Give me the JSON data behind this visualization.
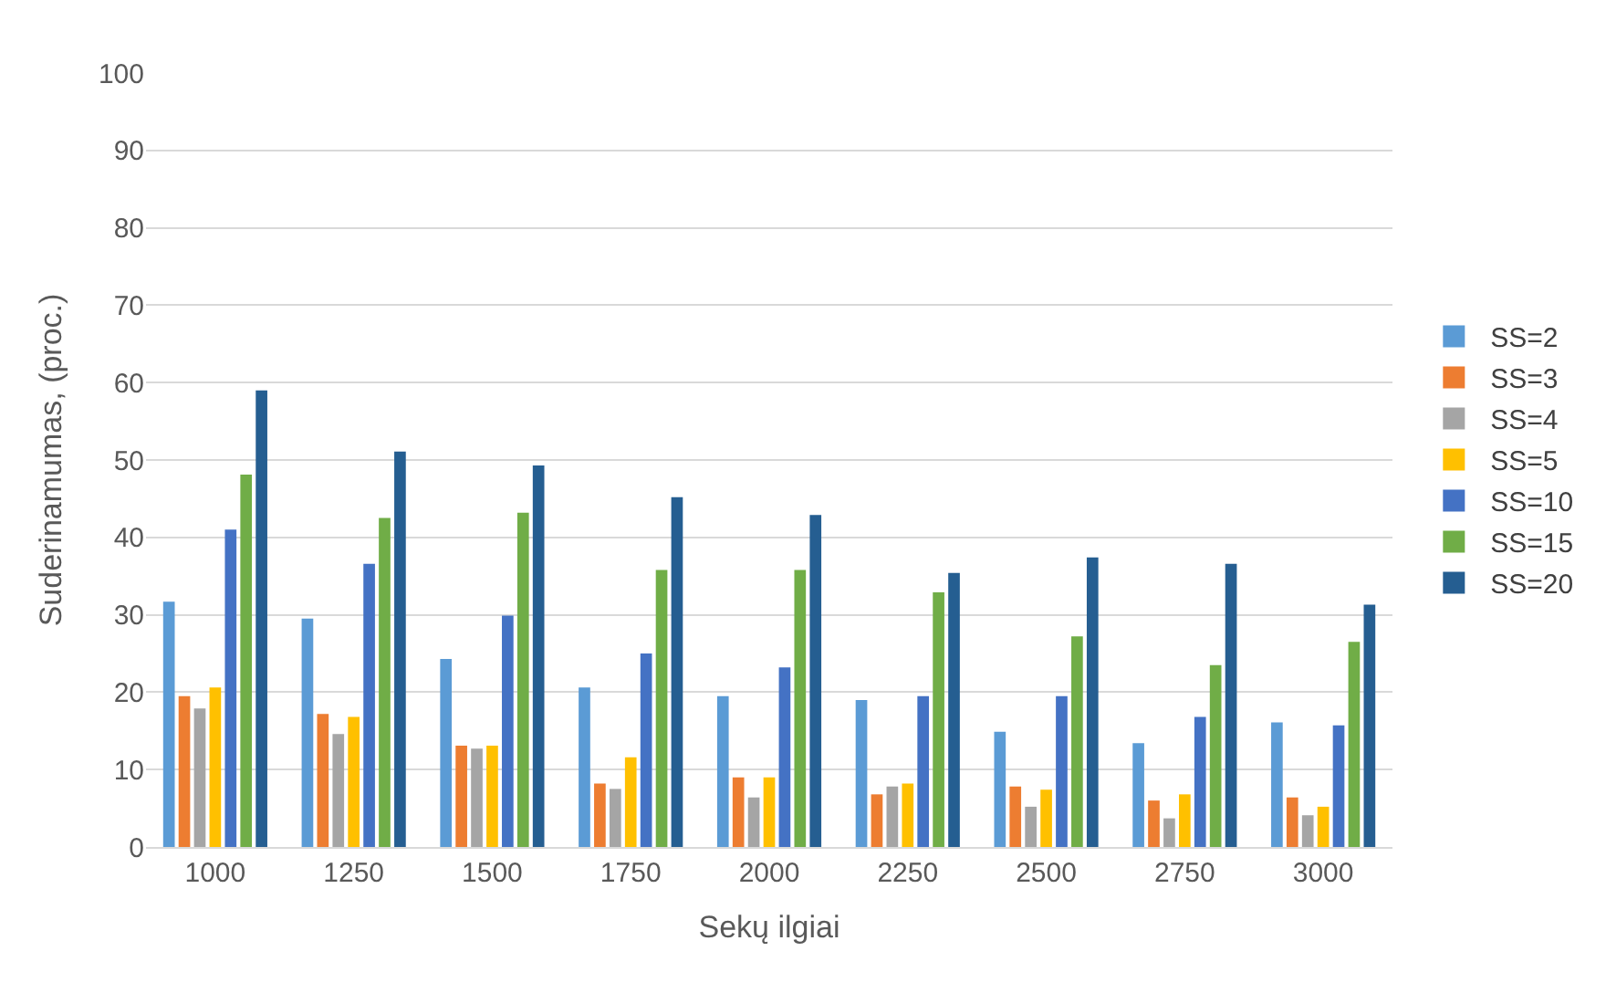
{
  "chart_data": {
    "type": "bar",
    "xlabel": "Sekų ilgiai",
    "ylabel": "Suderinamumas, (proc.)",
    "categories": [
      "1000",
      "1250",
      "1500",
      "1750",
      "2000",
      "2250",
      "2500",
      "2750",
      "3000"
    ],
    "series": [
      {
        "name": "SS=2",
        "color": "#5b9bd5",
        "values": [
          31.7,
          29.5,
          24.3,
          20.6,
          19.5,
          19.0,
          14.9,
          13.4,
          16.1
        ]
      },
      {
        "name": "SS=3",
        "color": "#ed7d31",
        "values": [
          19.5,
          17.2,
          13.1,
          8.2,
          9.0,
          6.8,
          7.8,
          6.0,
          6.4
        ]
      },
      {
        "name": "SS=4",
        "color": "#a5a5a5",
        "values": [
          17.9,
          14.6,
          12.7,
          7.5,
          6.4,
          7.8,
          5.2,
          3.7,
          4.1
        ]
      },
      {
        "name": "SS=5",
        "color": "#ffc000",
        "values": [
          20.6,
          16.8,
          13.1,
          11.6,
          9.0,
          8.2,
          7.4,
          6.8,
          5.2
        ]
      },
      {
        "name": "SS=10",
        "color": "#4472c4",
        "values": [
          41.0,
          36.6,
          29.9,
          25.0,
          23.2,
          19.5,
          19.5,
          16.8,
          15.7
        ]
      },
      {
        "name": "SS=15",
        "color": "#70ad47",
        "values": [
          48.1,
          42.5,
          43.2,
          35.8,
          35.8,
          32.9,
          27.2,
          23.5,
          26.5
        ]
      },
      {
        "name": "SS=20",
        "color": "#255e91",
        "values": [
          59.0,
          51.1,
          49.3,
          45.2,
          42.9,
          35.4,
          37.4,
          36.6,
          31.3
        ]
      }
    ],
    "ylim": [
      0,
      100
    ],
    "yticks": [
      0,
      10,
      20,
      30,
      40,
      50,
      60,
      70,
      80,
      90,
      100
    ],
    "grid": "y",
    "legend": "right"
  }
}
